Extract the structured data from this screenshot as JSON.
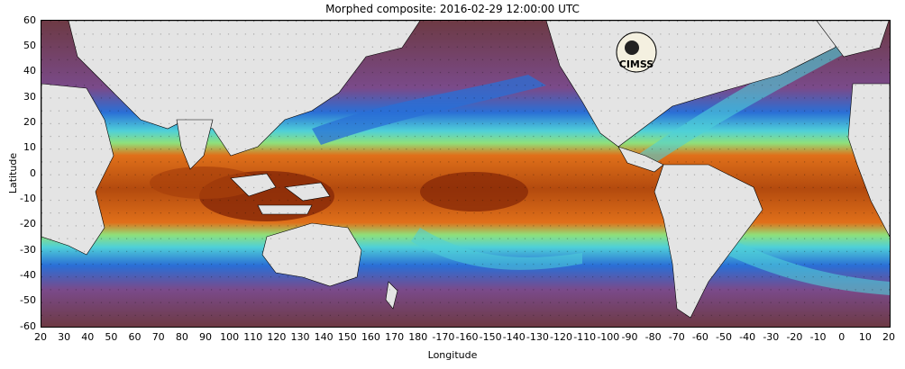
{
  "title": "Morphed composite: 2016-02-29 12:00:00 UTC",
  "xlabel": "Longitude",
  "ylabel": "Latitude",
  "yticks": [
    "60",
    "50",
    "40",
    "30",
    "20",
    "10",
    "0",
    "-10",
    "-20",
    "-30",
    "-40",
    "-50",
    "-60"
  ],
  "xticks": [
    "20",
    "30",
    "40",
    "50",
    "60",
    "70",
    "80",
    "90",
    "100",
    "110",
    "120",
    "130",
    "140",
    "150",
    "160",
    "170",
    "180",
    "-170",
    "-160",
    "-150",
    "-140",
    "-130",
    "-120",
    "-110",
    "-100",
    "-90",
    "-80",
    "-70",
    "-60",
    "-50",
    "-40",
    "-30",
    "-20",
    "-10",
    "0",
    "10",
    "20"
  ],
  "logo": "CIMSS",
  "colors": {
    "dry": "#6d3a44",
    "moist_blue": "#2a6fd6",
    "cyan": "#4fd0d8",
    "green": "#8fe07a",
    "wet_orange": "#e0701a",
    "very_wet": "#8a2a08",
    "land": "#e4e4e4"
  }
}
